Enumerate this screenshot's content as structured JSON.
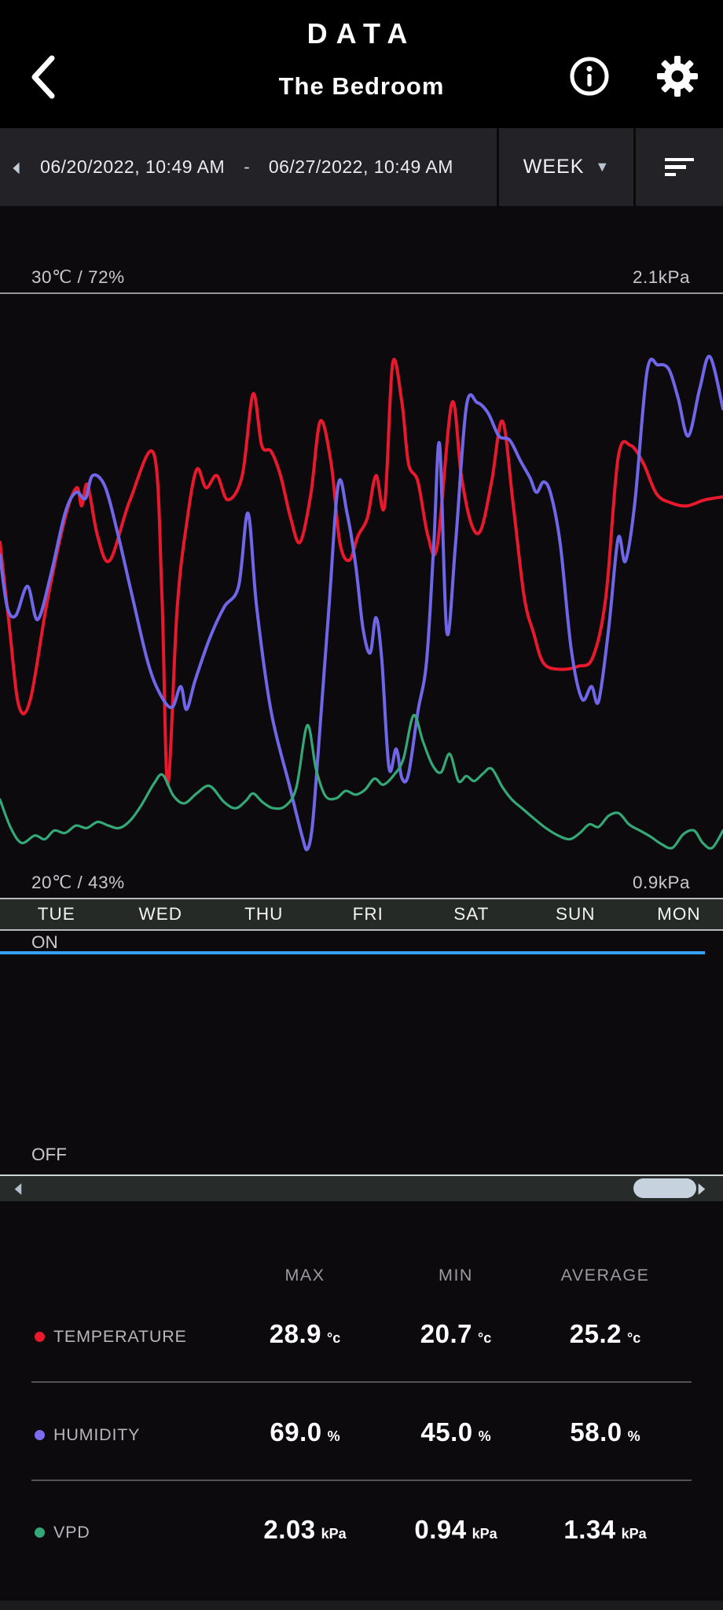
{
  "header": {
    "title": "DATA",
    "subtitle": "The Bedroom"
  },
  "toolbar": {
    "start_date": "06/20/2022, 10:49 AM",
    "dash": "-",
    "end_date": "06/27/2022, 10:49 AM",
    "range_selector": "WEEK"
  },
  "chart": {
    "top_left_label": "30℃ / 72%",
    "top_right_label": "2.1kPa",
    "bottom_left_label": "20℃ / 43%",
    "bottom_right_label": "0.9kPa",
    "days": [
      "TUE",
      "WED",
      "THU",
      "FRI",
      "SAT",
      "SUN",
      "MON"
    ],
    "on_label": "ON",
    "off_label": "OFF"
  },
  "chart_data": {
    "type": "line",
    "title": "The Bedroom sensor data, one week",
    "x_axis": {
      "start": "06/20/2022, 10:49 AM",
      "end": "06/27/2022, 10:49 AM",
      "span_days": 7,
      "ticks": [
        "TUE",
        "WED",
        "THU",
        "FRI",
        "SAT",
        "SUN",
        "MON"
      ]
    },
    "y_axes": {
      "temperature": {
        "min": 20,
        "max": 30,
        "unit": "℃",
        "top_label": "30℃",
        "bottom_label": "20℃"
      },
      "humidity": {
        "min": 43,
        "max": 72,
        "unit": "%",
        "top_label": "72%",
        "bottom_label": "43%"
      },
      "vpd": {
        "min": 0.9,
        "max": 2.1,
        "unit": "kPa",
        "top_label": "2.1kPa",
        "bottom_label": "0.9kPa"
      }
    },
    "legend_position": "none",
    "grid": false,
    "series": [
      {
        "name": "temperature",
        "axis": "temperature",
        "color": "#e8192c",
        "points": [
          [
            0.0,
            25.9
          ],
          [
            0.013,
            24.5
          ],
          [
            0.026,
            23.2
          ],
          [
            0.042,
            23.3
          ],
          [
            0.065,
            24.9
          ],
          [
            0.09,
            26.3
          ],
          [
            0.106,
            26.8
          ],
          [
            0.113,
            26.5
          ],
          [
            0.121,
            26.85
          ],
          [
            0.135,
            26.0
          ],
          [
            0.152,
            25.6
          ],
          [
            0.18,
            26.6
          ],
          [
            0.213,
            27.35
          ],
          [
            0.224,
            25.0
          ],
          [
            0.232,
            21.9
          ],
          [
            0.245,
            24.8
          ],
          [
            0.258,
            26.2
          ],
          [
            0.272,
            27.1
          ],
          [
            0.285,
            26.8
          ],
          [
            0.3,
            27.0
          ],
          [
            0.315,
            26.6
          ],
          [
            0.335,
            27.0
          ],
          [
            0.35,
            28.35
          ],
          [
            0.362,
            27.5
          ],
          [
            0.375,
            27.4
          ],
          [
            0.388,
            27.0
          ],
          [
            0.402,
            26.3
          ],
          [
            0.415,
            25.9
          ],
          [
            0.43,
            26.7
          ],
          [
            0.443,
            27.9
          ],
          [
            0.458,
            27.2
          ],
          [
            0.47,
            25.9
          ],
          [
            0.483,
            25.6
          ],
          [
            0.495,
            26.0
          ],
          [
            0.508,
            26.3
          ],
          [
            0.52,
            27.0
          ],
          [
            0.532,
            26.5
          ],
          [
            0.543,
            28.85
          ],
          [
            0.556,
            28.2
          ],
          [
            0.565,
            27.2
          ],
          [
            0.578,
            26.9
          ],
          [
            0.592,
            26.0
          ],
          [
            0.605,
            25.85
          ],
          [
            0.625,
            28.2
          ],
          [
            0.638,
            27.0
          ],
          [
            0.652,
            26.2
          ],
          [
            0.665,
            26.1
          ],
          [
            0.68,
            26.9
          ],
          [
            0.695,
            27.9
          ],
          [
            0.71,
            26.5
          ],
          [
            0.725,
            25.0
          ],
          [
            0.738,
            24.4
          ],
          [
            0.752,
            23.9
          ],
          [
            0.775,
            23.8
          ],
          [
            0.8,
            23.85
          ],
          [
            0.82,
            24.0
          ],
          [
            0.838,
            25.0
          ],
          [
            0.855,
            27.3
          ],
          [
            0.872,
            27.5
          ],
          [
            0.89,
            27.2
          ],
          [
            0.908,
            26.7
          ],
          [
            0.928,
            26.55
          ],
          [
            0.95,
            26.5
          ],
          [
            0.975,
            26.6
          ],
          [
            1.0,
            26.65
          ]
        ]
      },
      {
        "name": "humidity",
        "axis": "humidity",
        "color": "#6f66e8",
        "points": [
          [
            0.0,
            59.5
          ],
          [
            0.01,
            57.0
          ],
          [
            0.022,
            56.6
          ],
          [
            0.038,
            58.0
          ],
          [
            0.052,
            56.4
          ],
          [
            0.07,
            58.5
          ],
          [
            0.09,
            61.5
          ],
          [
            0.105,
            62.5
          ],
          [
            0.118,
            62.2
          ],
          [
            0.128,
            63.3
          ],
          [
            0.145,
            62.8
          ],
          [
            0.163,
            60.5
          ],
          [
            0.183,
            57.5
          ],
          [
            0.205,
            54.3
          ],
          [
            0.222,
            52.8
          ],
          [
            0.238,
            52.2
          ],
          [
            0.25,
            53.2
          ],
          [
            0.258,
            52.1
          ],
          [
            0.27,
            53.5
          ],
          [
            0.29,
            55.5
          ],
          [
            0.31,
            57.0
          ],
          [
            0.33,
            58.0
          ],
          [
            0.343,
            61.5
          ],
          [
            0.355,
            57.0
          ],
          [
            0.375,
            52.0
          ],
          [
            0.4,
            48.5
          ],
          [
            0.418,
            46.0
          ],
          [
            0.425,
            45.4
          ],
          [
            0.432,
            46.5
          ],
          [
            0.44,
            50.0
          ],
          [
            0.455,
            57.0
          ],
          [
            0.468,
            62.9
          ],
          [
            0.48,
            61.5
          ],
          [
            0.492,
            59.0
          ],
          [
            0.502,
            56.0
          ],
          [
            0.512,
            54.8
          ],
          [
            0.52,
            56.5
          ],
          [
            0.528,
            54.5
          ],
          [
            0.538,
            49.3
          ],
          [
            0.548,
            50.2
          ],
          [
            0.556,
            48.8
          ],
          [
            0.565,
            49.0
          ],
          [
            0.578,
            52.0
          ],
          [
            0.59,
            54.4
          ],
          [
            0.6,
            60.0
          ],
          [
            0.608,
            64.8
          ],
          [
            0.618,
            55.8
          ],
          [
            0.63,
            60.0
          ],
          [
            0.645,
            66.6
          ],
          [
            0.66,
            66.8
          ],
          [
            0.675,
            66.3
          ],
          [
            0.69,
            65.2
          ],
          [
            0.705,
            65.0
          ],
          [
            0.72,
            64.0
          ],
          [
            0.733,
            63.2
          ],
          [
            0.742,
            62.5
          ],
          [
            0.752,
            63.0
          ],
          [
            0.762,
            62.4
          ],
          [
            0.775,
            60.0
          ],
          [
            0.79,
            55.0
          ],
          [
            0.805,
            52.6
          ],
          [
            0.818,
            53.2
          ],
          [
            0.828,
            52.5
          ],
          [
            0.842,
            56.0
          ],
          [
            0.855,
            60.3
          ],
          [
            0.865,
            59.2
          ],
          [
            0.878,
            62.0
          ],
          [
            0.895,
            68.3
          ],
          [
            0.91,
            68.6
          ],
          [
            0.925,
            68.4
          ],
          [
            0.938,
            67.0
          ],
          [
            0.952,
            65.2
          ],
          [
            0.968,
            67.5
          ],
          [
            0.982,
            69.0
          ],
          [
            1.0,
            66.5
          ]
        ]
      },
      {
        "name": "vpd",
        "axis": "vpd",
        "color": "#35a877",
        "points": [
          [
            0.0,
            1.35
          ],
          [
            0.015,
            1.12
          ],
          [
            0.03,
            1.0
          ],
          [
            0.048,
            1.06
          ],
          [
            0.062,
            1.03
          ],
          [
            0.075,
            1.1
          ],
          [
            0.09,
            1.08
          ],
          [
            0.105,
            1.14
          ],
          [
            0.12,
            1.12
          ],
          [
            0.135,
            1.17
          ],
          [
            0.15,
            1.14
          ],
          [
            0.165,
            1.12
          ],
          [
            0.18,
            1.18
          ],
          [
            0.195,
            1.3
          ],
          [
            0.213,
            1.48
          ],
          [
            0.225,
            1.55
          ],
          [
            0.24,
            1.38
          ],
          [
            0.255,
            1.32
          ],
          [
            0.272,
            1.4
          ],
          [
            0.29,
            1.46
          ],
          [
            0.31,
            1.33
          ],
          [
            0.326,
            1.28
          ],
          [
            0.34,
            1.34
          ],
          [
            0.35,
            1.4
          ],
          [
            0.363,
            1.33
          ],
          [
            0.378,
            1.28
          ],
          [
            0.395,
            1.3
          ],
          [
            0.41,
            1.45
          ],
          [
            0.425,
            1.95
          ],
          [
            0.437,
            1.6
          ],
          [
            0.45,
            1.38
          ],
          [
            0.465,
            1.36
          ],
          [
            0.478,
            1.42
          ],
          [
            0.492,
            1.39
          ],
          [
            0.505,
            1.43
          ],
          [
            0.518,
            1.52
          ],
          [
            0.53,
            1.47
          ],
          [
            0.545,
            1.55
          ],
          [
            0.558,
            1.68
          ],
          [
            0.572,
            2.03
          ],
          [
            0.585,
            1.82
          ],
          [
            0.598,
            1.63
          ],
          [
            0.61,
            1.57
          ],
          [
            0.622,
            1.72
          ],
          [
            0.634,
            1.5
          ],
          [
            0.645,
            1.54
          ],
          [
            0.656,
            1.5
          ],
          [
            0.668,
            1.56
          ],
          [
            0.68,
            1.6
          ],
          [
            0.695,
            1.45
          ],
          [
            0.708,
            1.35
          ],
          [
            0.722,
            1.28
          ],
          [
            0.738,
            1.2
          ],
          [
            0.755,
            1.12
          ],
          [
            0.772,
            1.06
          ],
          [
            0.788,
            1.03
          ],
          [
            0.802,
            1.08
          ],
          [
            0.815,
            1.15
          ],
          [
            0.828,
            1.13
          ],
          [
            0.842,
            1.22
          ],
          [
            0.856,
            1.24
          ],
          [
            0.87,
            1.15
          ],
          [
            0.885,
            1.1
          ],
          [
            0.9,
            1.05
          ],
          [
            0.915,
            0.99
          ],
          [
            0.93,
            0.96
          ],
          [
            0.945,
            1.07
          ],
          [
            0.96,
            1.1
          ],
          [
            0.972,
            1.0
          ],
          [
            0.985,
            0.96
          ],
          [
            1.0,
            1.1
          ]
        ]
      }
    ],
    "power_state": {
      "value": "ON",
      "color": "#36a4f4",
      "coverage": "entire period"
    }
  },
  "stats_table": {
    "columns": [
      "MAX",
      "MIN",
      "AVERAGE"
    ],
    "rows": [
      {
        "label": "TEMPERATURE",
        "color": "#e8192c",
        "max": "28.9",
        "min": "20.7",
        "average": "25.2",
        "unit": "°c"
      },
      {
        "label": "HUMIDITY",
        "color": "#7b6cf0",
        "max": "69.0",
        "min": "45.0",
        "average": "58.0",
        "unit": "%"
      },
      {
        "label": "VPD",
        "color": "#35a877",
        "max": "2.03",
        "min": "0.94",
        "average": "1.34",
        "unit": "kPa"
      }
    ]
  }
}
